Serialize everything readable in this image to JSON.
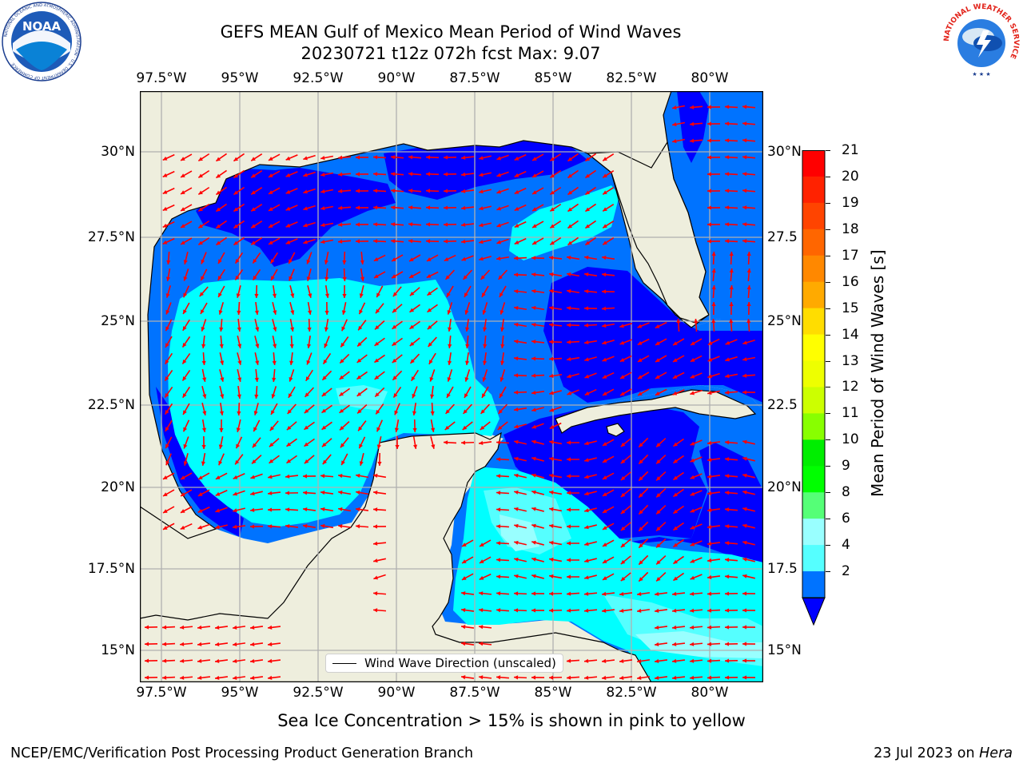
{
  "title": {
    "line1": "GEFS MEAN Gulf of Mexico Mean Period of Wind Waves",
    "line2": "20230721 t12z 072h fcst   Max: 9.07"
  },
  "logos": {
    "left": {
      "name": "noaa-logo",
      "text": "NOAA",
      "ring_text": "NATIONAL OCEANIC AND ATMOSPHERIC ADMINISTRATION · U.S. DEPARTMENT OF COMMERCE"
    },
    "right": {
      "name": "nws-logo",
      "ring_text": "NATIONAL WEATHER SERVICE"
    }
  },
  "map": {
    "lon_labels": [
      "97.5°W",
      "95°W",
      "92.5°W",
      "90°W",
      "87.5°W",
      "85°W",
      "82.5°W",
      "80°W"
    ],
    "lat_labels_left": [
      "30°N",
      "27.5°N",
      "25°N",
      "22.5°N",
      "20°N",
      "17.5°N",
      "15°N"
    ],
    "lat_labels_right": [
      "30°N",
      "27.5",
      "25°N",
      "22.5",
      "20°N",
      "17.5",
      "15°N"
    ],
    "legend": "Wind Wave Direction (unscaled)",
    "colors": {
      "land": "#eeeedd",
      "ocean_2_4": "#0073ff",
      "deep": "#0000ff",
      "ocean_4_6": "#00ffff",
      "ocean_6_8": "#55ffff",
      "ocean_8_9": "#99ffff",
      "arrow": "#ff0000",
      "grid": "#b0b0b0"
    }
  },
  "colorbar": {
    "label": "Mean Period of Wind Waves [s]",
    "ticks": [
      "21",
      "20",
      "19",
      "18",
      "17",
      "16",
      "15",
      "14",
      "13",
      "12",
      "11",
      "10",
      "9",
      "8",
      "6",
      "4",
      "2"
    ],
    "colors": [
      "#ff0000",
      "#ff2200",
      "#ff4400",
      "#ff6600",
      "#ff8800",
      "#ffaa00",
      "#ffdd00",
      "#ffff00",
      "#eeff00",
      "#ccff00",
      "#88ff00",
      "#00ee00",
      "#00ff00",
      "#55ff77",
      "#99ffff",
      "#55ffff",
      "#00ffff",
      "#0073ff"
    ],
    "extend_color": "#0000ff"
  },
  "caption": "Sea Ice Concentration > 15% is shown in pink to yellow",
  "footer": {
    "left": "NCEP/EMC/Verification Post Processing Product Generation Branch",
    "right_date": "23 Jul 2023 on ",
    "right_host": "Hera"
  }
}
